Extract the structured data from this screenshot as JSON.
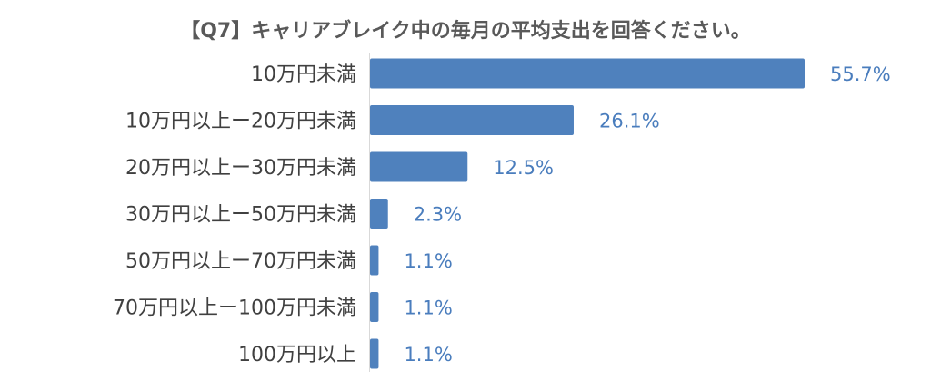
{
  "colors": {
    "bar": "#4f81bd",
    "value_label": "#4a7dbd",
    "category_label": "#404040",
    "title": "#595959"
  },
  "chart_data": {
    "type": "bar",
    "orientation": "horizontal",
    "title": "【Q7】キャリアブレイク中の毎月の平均支出を回答ください。",
    "categories": [
      "10万円未満",
      "10万円以上ー20万円未満",
      "20万円以上ー30万円未満",
      "30万円以上ー50万円未満",
      "50万円以上ー70万円未満",
      "70万円以上ー100万円未満",
      "100万円以上"
    ],
    "values": [
      55.7,
      26.1,
      12.5,
      2.3,
      1.1,
      1.1,
      1.1
    ],
    "value_labels": [
      "55.7%",
      "26.1%",
      "12.5%",
      "2.3%",
      "1.1%",
      "1.1%",
      "1.1%"
    ],
    "unit": "%",
    "xlim": [
      0,
      55.7
    ],
    "grid": false,
    "legend": "none"
  }
}
